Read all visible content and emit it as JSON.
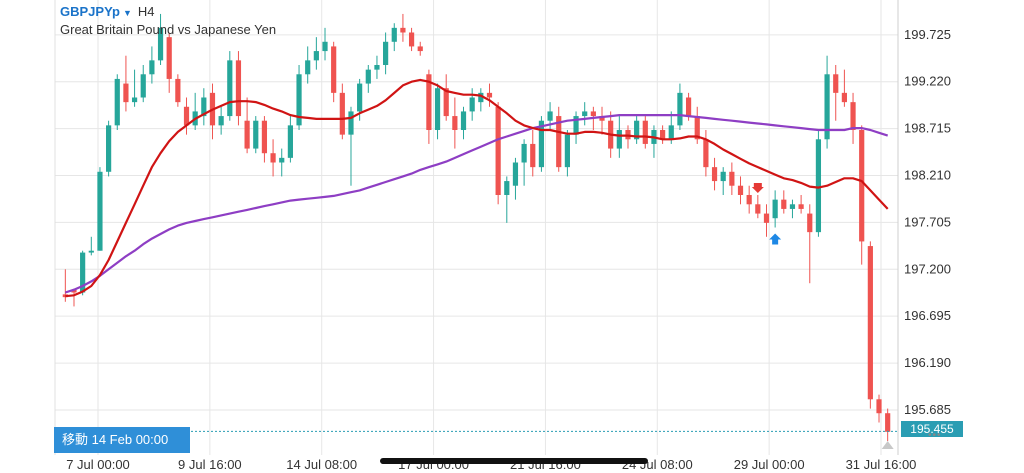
{
  "header": {
    "symbol": "GBPJPYp",
    "timeframe": "H4",
    "description": "Great Britain Pound vs Japanese Yen",
    "caret_icon": "caret-down-icon"
  },
  "goto_label": "移動 14 Feb 00:00",
  "current_price": "195.455",
  "colors": {
    "up": "#26a69a",
    "down": "#ef5350",
    "ma_fast": "#d01414",
    "ma_slow": "#8e3ec4",
    "grid": "#e6e6e6",
    "price_line": "#2a9db3",
    "accent": "#2f8fd8"
  },
  "chart_data": {
    "type": "candlestick",
    "y_ticks": [
      "199.725",
      "199.220",
      "198.715",
      "198.210",
      "197.705",
      "197.200",
      "196.695",
      "196.190",
      "195.685",
      "195.455"
    ],
    "ylim": [
      195.2,
      200.1
    ],
    "x_ticks": [
      "7 Jul 00:00",
      "9 Jul 16:00",
      "14 Jul 08:00",
      "17 Jul 00:00",
      "21 Jul 16:00",
      "24 Jul 08:00",
      "29 Jul 00:00",
      "31 Jul 16:00"
    ],
    "grid": true,
    "last_price": 195.455,
    "candles": [
      [
        196.93,
        197.2,
        196.85,
        196.9
      ],
      [
        196.98,
        196.99,
        196.8,
        196.95
      ],
      [
        196.95,
        197.4,
        196.92,
        197.38
      ],
      [
        197.38,
        197.55,
        197.35,
        197.4
      ],
      [
        197.4,
        198.3,
        197.4,
        198.25
      ],
      [
        198.25,
        198.8,
        198.2,
        198.75
      ],
      [
        198.75,
        199.3,
        198.7,
        199.25
      ],
      [
        199.2,
        199.5,
        198.9,
        199.0
      ],
      [
        199.0,
        199.35,
        198.95,
        199.05
      ],
      [
        199.05,
        199.4,
        199.0,
        199.3
      ],
      [
        199.3,
        199.6,
        199.2,
        199.45
      ],
      [
        199.45,
        199.95,
        199.4,
        199.8
      ],
      [
        199.7,
        199.75,
        199.1,
        199.25
      ],
      [
        199.25,
        199.3,
        198.95,
        199.0
      ],
      [
        198.95,
        199.05,
        198.65,
        198.75
      ],
      [
        198.75,
        199.1,
        198.7,
        198.9
      ],
      [
        198.85,
        199.15,
        198.75,
        199.05
      ],
      [
        199.1,
        199.2,
        198.6,
        198.75
      ],
      [
        198.75,
        198.95,
        198.65,
        198.85
      ],
      [
        198.85,
        199.55,
        198.8,
        199.45
      ],
      [
        199.45,
        199.55,
        198.75,
        198.85
      ],
      [
        198.8,
        199.05,
        198.45,
        198.5
      ],
      [
        198.5,
        198.85,
        198.45,
        198.8
      ],
      [
        198.8,
        198.85,
        198.35,
        198.45
      ],
      [
        198.45,
        198.6,
        198.2,
        198.35
      ],
      [
        198.35,
        198.5,
        198.2,
        198.4
      ],
      [
        198.4,
        198.85,
        198.35,
        198.75
      ],
      [
        198.75,
        199.4,
        198.7,
        199.3
      ],
      [
        199.3,
        199.6,
        199.2,
        199.45
      ],
      [
        199.45,
        199.7,
        199.35,
        199.55
      ],
      [
        199.55,
        199.8,
        199.45,
        199.65
      ],
      [
        199.6,
        199.65,
        199.0,
        199.1
      ],
      [
        199.1,
        199.2,
        198.6,
        198.65
      ],
      [
        198.65,
        198.95,
        198.1,
        198.9
      ],
      [
        198.9,
        199.25,
        198.8,
        199.2
      ],
      [
        199.2,
        199.4,
        199.1,
        199.35
      ],
      [
        199.35,
        199.5,
        199.25,
        199.4
      ],
      [
        199.4,
        199.75,
        199.3,
        199.65
      ],
      [
        199.65,
        199.85,
        199.55,
        199.8
      ],
      [
        199.8,
        199.95,
        199.65,
        199.75
      ],
      [
        199.75,
        199.8,
        199.55,
        199.6
      ],
      [
        199.6,
        199.65,
        199.5,
        199.55
      ],
      [
        199.3,
        199.35,
        198.55,
        198.7
      ],
      [
        198.7,
        199.2,
        198.6,
        199.15
      ],
      [
        199.15,
        199.3,
        198.8,
        198.85
      ],
      [
        198.85,
        199.05,
        198.5,
        198.7
      ],
      [
        198.7,
        198.95,
        198.6,
        198.9
      ],
      [
        198.9,
        199.15,
        198.8,
        199.05
      ],
      [
        199.0,
        199.15,
        198.9,
        199.1
      ],
      [
        199.1,
        199.2,
        198.95,
        199.05
      ],
      [
        198.95,
        199.0,
        197.9,
        198.0
      ],
      [
        198.0,
        198.2,
        197.7,
        198.15
      ],
      [
        198.1,
        198.4,
        197.95,
        198.35
      ],
      [
        198.35,
        198.6,
        198.1,
        198.55
      ],
      [
        198.55,
        198.7,
        198.2,
        198.3
      ],
      [
        198.3,
        198.85,
        198.25,
        198.8
      ],
      [
        198.8,
        199.0,
        198.7,
        198.9
      ],
      [
        198.85,
        198.95,
        198.25,
        198.3
      ],
      [
        198.3,
        198.7,
        198.2,
        198.65
      ],
      [
        198.65,
        198.9,
        198.55,
        198.85
      ],
      [
        198.85,
        199.0,
        198.75,
        198.9
      ],
      [
        198.9,
        198.95,
        198.7,
        198.85
      ],
      [
        198.85,
        198.95,
        198.65,
        198.8
      ],
      [
        198.8,
        198.9,
        198.4,
        198.5
      ],
      [
        198.5,
        198.85,
        198.4,
        198.7
      ],
      [
        198.7,
        198.75,
        198.5,
        198.6
      ],
      [
        198.6,
        198.85,
        198.55,
        198.8
      ],
      [
        198.8,
        198.85,
        198.5,
        198.55
      ],
      [
        198.55,
        198.75,
        198.4,
        198.7
      ],
      [
        198.7,
        198.75,
        198.55,
        198.6
      ],
      [
        198.6,
        198.9,
        198.55,
        198.75
      ],
      [
        198.75,
        199.2,
        198.7,
        199.1
      ],
      [
        199.05,
        199.1,
        198.8,
        198.85
      ],
      [
        198.85,
        198.95,
        198.55,
        198.6
      ],
      [
        198.6,
        198.7,
        198.2,
        198.3
      ],
      [
        198.3,
        198.4,
        198.05,
        198.15
      ],
      [
        198.15,
        198.3,
        198.0,
        198.25
      ],
      [
        198.25,
        198.35,
        198.0,
        198.1
      ],
      [
        198.1,
        198.2,
        197.9,
        198.0
      ],
      [
        198.0,
        198.1,
        197.8,
        197.9
      ],
      [
        197.9,
        198.0,
        197.75,
        197.8
      ],
      [
        197.8,
        197.9,
        197.55,
        197.7
      ],
      [
        197.75,
        198.05,
        197.65,
        197.95
      ],
      [
        197.95,
        198.05,
        197.8,
        197.85
      ],
      [
        197.85,
        197.95,
        197.75,
        197.9
      ],
      [
        197.9,
        198.0,
        197.8,
        197.85
      ],
      [
        197.8,
        197.9,
        197.05,
        197.6
      ],
      [
        197.6,
        198.7,
        197.55,
        198.6
      ],
      [
        198.6,
        199.5,
        198.5,
        199.3
      ],
      [
        199.3,
        199.4,
        198.8,
        199.1
      ],
      [
        199.1,
        199.35,
        198.95,
        199.0
      ],
      [
        199.0,
        199.1,
        198.55,
        198.7
      ],
      [
        198.7,
        198.75,
        197.25,
        197.5
      ],
      [
        197.45,
        197.5,
        195.7,
        195.8
      ],
      [
        195.8,
        195.85,
        195.55,
        195.65
      ],
      [
        195.65,
        195.7,
        195.35,
        195.45
      ]
    ],
    "ma_fast": [
      196.91,
      196.92,
      196.96,
      197.02,
      197.14,
      197.3,
      197.5,
      197.7,
      197.9,
      198.1,
      198.3,
      198.45,
      198.58,
      198.68,
      198.75,
      198.82,
      198.87,
      198.92,
      198.96,
      199.0,
      199.01,
      199.01,
      199.0,
      198.97,
      198.93,
      198.9,
      198.86,
      198.84,
      198.83,
      198.82,
      198.82,
      198.82,
      198.82,
      198.83,
      198.88,
      198.92,
      198.96,
      199.02,
      199.1,
      199.18,
      199.22,
      199.24,
      199.22,
      199.18,
      199.12,
      199.1,
      199.08,
      199.08,
      199.07,
      199.02,
      198.95,
      198.88,
      198.8,
      198.75,
      198.72,
      198.7,
      198.7,
      198.68,
      198.66,
      198.66,
      198.68,
      198.68,
      198.67,
      198.65,
      198.64,
      198.64,
      198.63,
      198.63,
      198.62,
      198.6,
      198.6,
      198.61,
      198.63,
      198.63,
      198.6,
      198.55,
      198.49,
      198.44,
      198.39,
      198.34,
      198.3,
      198.26,
      198.22,
      198.18,
      198.16,
      198.13,
      198.09,
      198.08,
      198.1,
      198.14,
      198.18,
      198.18,
      198.15,
      198.05,
      197.95,
      197.85
    ],
    "ma_slow": [
      196.95,
      196.98,
      197.02,
      197.07,
      197.13,
      197.2,
      197.27,
      197.34,
      197.4,
      197.47,
      197.53,
      197.58,
      197.63,
      197.67,
      197.7,
      197.72,
      197.74,
      197.76,
      197.78,
      197.8,
      197.82,
      197.84,
      197.86,
      197.88,
      197.9,
      197.92,
      197.94,
      197.95,
      197.96,
      197.97,
      197.98,
      197.99,
      198.01,
      198.03,
      198.05,
      198.08,
      198.11,
      198.14,
      198.17,
      198.2,
      198.23,
      198.27,
      198.3,
      198.33,
      198.36,
      198.4,
      198.44,
      198.48,
      198.52,
      198.56,
      198.6,
      198.63,
      198.66,
      198.69,
      198.72,
      198.74,
      198.76,
      198.78,
      198.8,
      198.81,
      198.82,
      198.83,
      198.84,
      198.85,
      198.86,
      198.86,
      198.86,
      198.86,
      198.86,
      198.86,
      198.86,
      198.86,
      198.85,
      198.84,
      198.83,
      198.82,
      198.81,
      198.8,
      198.79,
      198.78,
      198.77,
      198.76,
      198.75,
      198.74,
      198.73,
      198.72,
      198.71,
      198.7,
      198.7,
      198.7,
      198.7,
      198.72,
      198.72,
      198.7,
      198.67,
      198.64
    ],
    "markers": [
      {
        "candle": 80,
        "direction": "sell"
      },
      {
        "candle": 82,
        "direction": "buy"
      }
    ]
  }
}
